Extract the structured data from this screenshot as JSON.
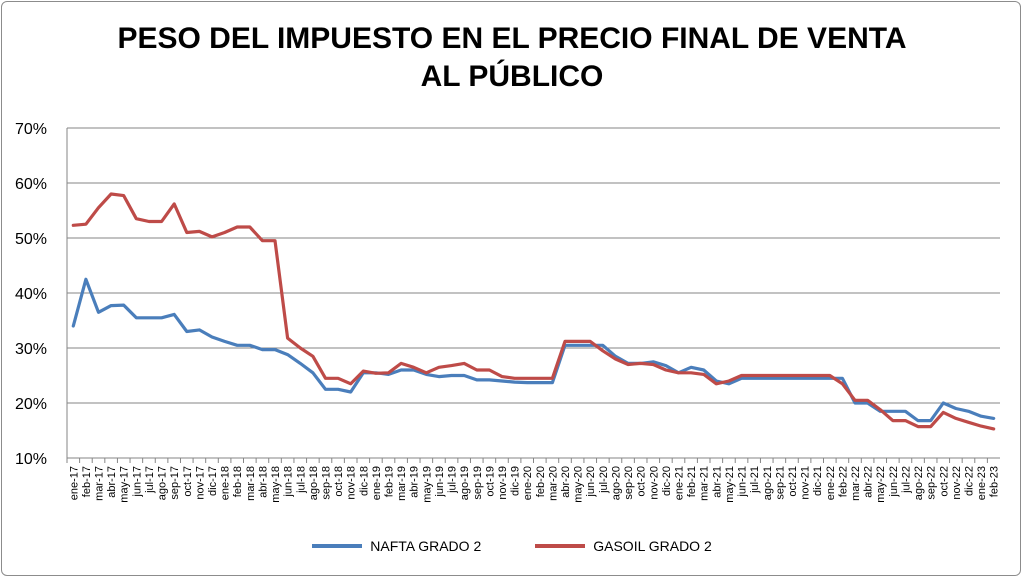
{
  "chart_data": {
    "type": "line",
    "title": "PESO DEL IMPUESTO EN EL PRECIO FINAL DE VENTA",
    "title_line2": "AL PÚBLICO",
    "xlabel": "",
    "ylabel": "",
    "ylim": [
      0.1,
      0.7
    ],
    "yticks": [
      0.1,
      0.2,
      0.3,
      0.4,
      0.5,
      0.6,
      0.7
    ],
    "ytick_labels": [
      "10%",
      "20%",
      "30%",
      "40%",
      "50%",
      "60%",
      "70%"
    ],
    "grid": "horizontal",
    "legend": "bottom",
    "categories": [
      "ene-17",
      "feb-17",
      "mar-17",
      "abr-17",
      "may-17",
      "jun-17",
      "jul-17",
      "ago-17",
      "sep-17",
      "oct-17",
      "nov-17",
      "dic-17",
      "ene-18",
      "feb-18",
      "mar-18",
      "abr-18",
      "may-18",
      "jun-18",
      "jul-18",
      "ago-18",
      "sep-18",
      "oct-18",
      "nov-18",
      "dic-18",
      "ene-19",
      "feb-19",
      "mar-19",
      "abr-19",
      "may-19",
      "jun-19",
      "jul-19",
      "ago-19",
      "sep-19",
      "oct-19",
      "nov-19",
      "dic-19",
      "ene-20",
      "feb-20",
      "mar-20",
      "abr-20",
      "may-20",
      "jun-20",
      "jul-20",
      "ago-20",
      "sep-20",
      "oct-20",
      "nov-20",
      "dic-20",
      "ene-21",
      "feb-21",
      "mar-21",
      "abr-21",
      "may-21",
      "jun-21",
      "jul-21",
      "ago-21",
      "sep-21",
      "oct-21",
      "nov-21",
      "dic-21",
      "ene-22",
      "feb-22",
      "mar-22",
      "abr-22",
      "may-22",
      "jun-22",
      "jul-22",
      "ago-22",
      "sep-22",
      "oct-22",
      "nov-22",
      "dic-22",
      "ene-23",
      "feb-23"
    ],
    "series": [
      {
        "name": "NAFTA GRADO 2",
        "color": "#4a7ebb",
        "values": [
          0.34,
          0.425,
          0.365,
          0.377,
          0.378,
          0.355,
          0.355,
          0.355,
          0.361,
          0.33,
          0.333,
          0.32,
          0.312,
          0.305,
          0.305,
          0.297,
          0.297,
          0.288,
          0.272,
          0.255,
          0.225,
          0.225,
          0.22,
          0.255,
          0.255,
          0.252,
          0.26,
          0.26,
          0.252,
          0.248,
          0.25,
          0.25,
          0.242,
          0.242,
          0.24,
          0.238,
          0.237,
          0.237,
          0.237,
          0.305,
          0.305,
          0.305,
          0.305,
          0.285,
          0.272,
          0.272,
          0.275,
          0.268,
          0.255,
          0.265,
          0.26,
          0.24,
          0.235,
          0.245,
          0.245,
          0.245,
          0.245,
          0.245,
          0.245,
          0.245,
          0.245,
          0.245,
          0.2,
          0.2,
          0.185,
          0.185,
          0.185,
          0.168,
          0.168,
          0.2,
          0.19,
          0.185,
          0.176,
          0.172
        ]
      },
      {
        "name": "GASOIL GRADO 2",
        "color": "#be4b48",
        "values": [
          0.523,
          0.525,
          0.555,
          0.58,
          0.577,
          0.535,
          0.53,
          0.53,
          0.562,
          0.51,
          0.512,
          0.502,
          0.51,
          0.52,
          0.52,
          0.495,
          0.495,
          0.318,
          0.3,
          0.285,
          0.245,
          0.245,
          0.235,
          0.258,
          0.254,
          0.255,
          0.272,
          0.265,
          0.255,
          0.265,
          0.268,
          0.272,
          0.26,
          0.26,
          0.248,
          0.245,
          0.245,
          0.245,
          0.245,
          0.312,
          0.312,
          0.312,
          0.295,
          0.28,
          0.27,
          0.272,
          0.27,
          0.26,
          0.255,
          0.255,
          0.252,
          0.235,
          0.24,
          0.25,
          0.25,
          0.25,
          0.25,
          0.25,
          0.25,
          0.25,
          0.25,
          0.235,
          0.205,
          0.205,
          0.188,
          0.168,
          0.168,
          0.157,
          0.157,
          0.183,
          0.172,
          0.165,
          0.158,
          0.153
        ]
      }
    ]
  },
  "legend_items": [
    "NAFTA GRADO 2",
    "GASOIL GRADO 2"
  ]
}
